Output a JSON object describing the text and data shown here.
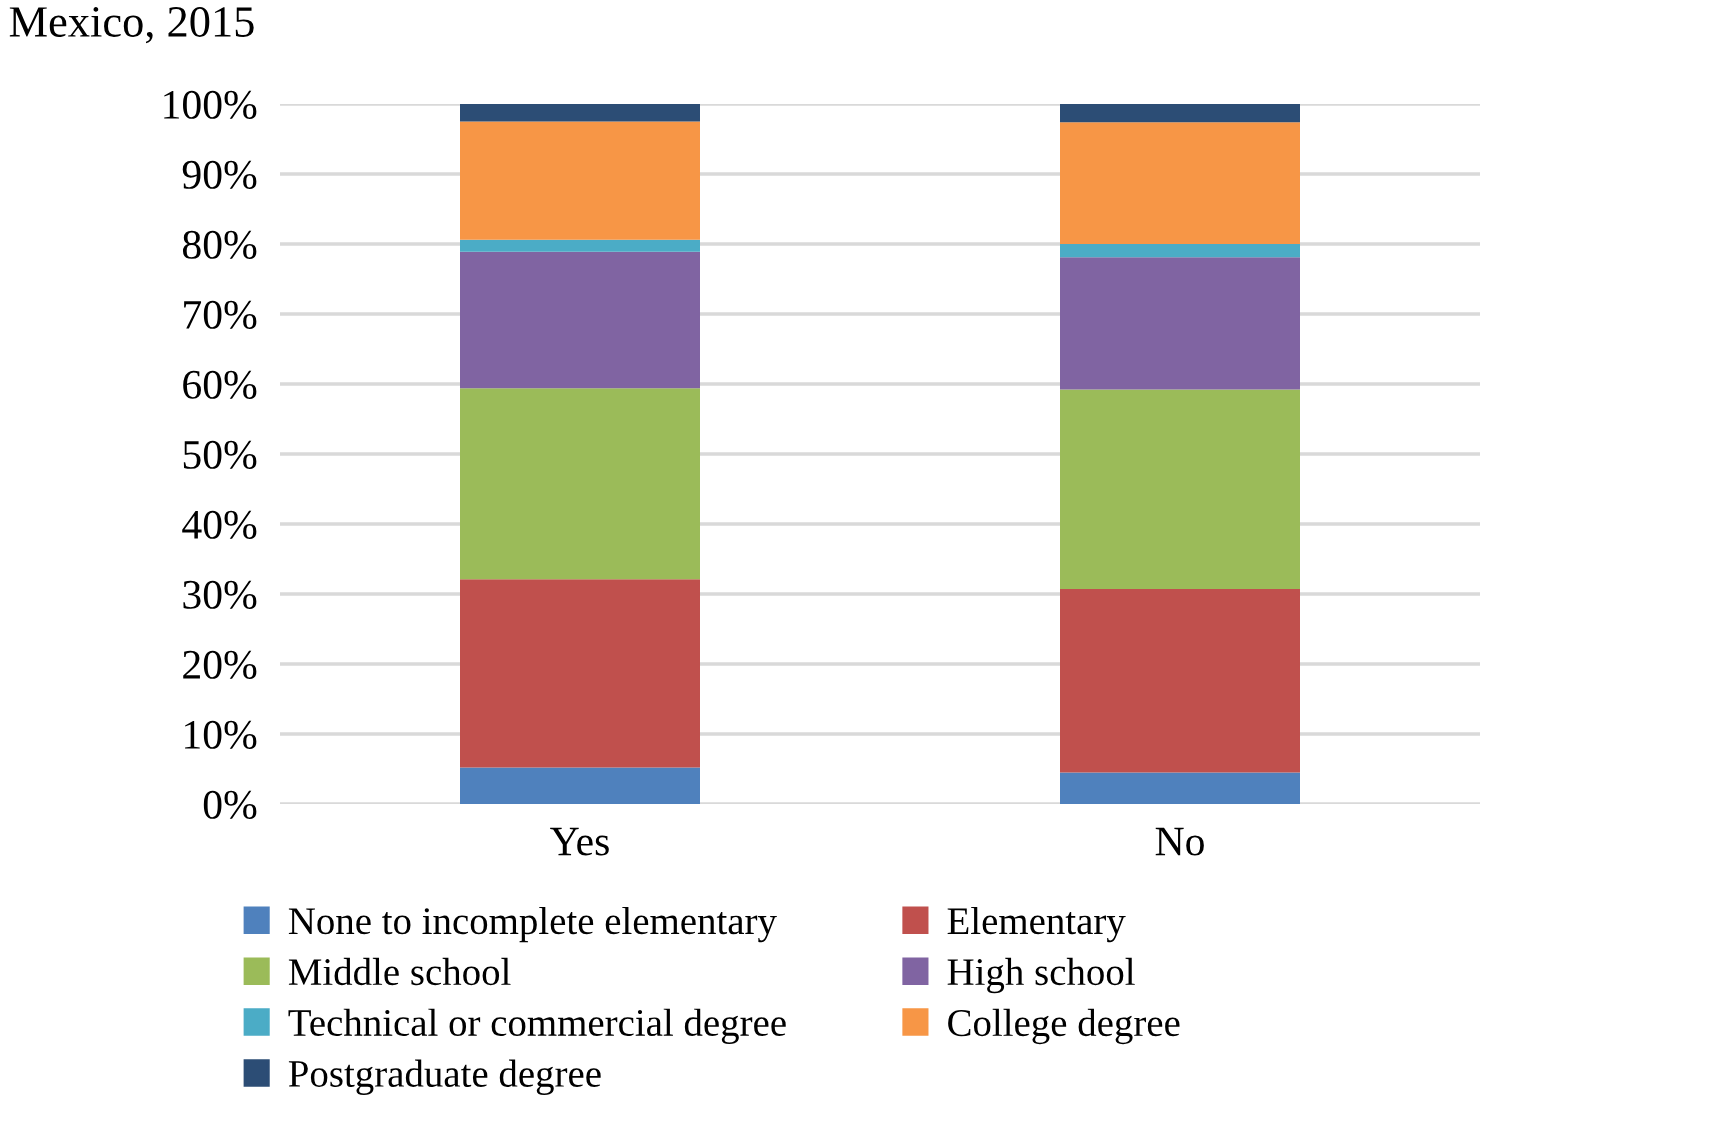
{
  "chart_data": {
    "type": "bar",
    "stacked": true,
    "title": "Mexico, 2015",
    "categories": [
      "Yes",
      "No"
    ],
    "series": [
      {
        "name": "None to incomplete elementary",
        "color": "#4f81bd",
        "values": [
          5.2,
          4.5
        ]
      },
      {
        "name": "Elementary",
        "color": "#c0504d",
        "values": [
          26.9,
          26.2
        ]
      },
      {
        "name": "Middle school",
        "color": "#9bbb59",
        "values": [
          27.3,
          28.5
        ]
      },
      {
        "name": "High school",
        "color": "#8064a2",
        "values": [
          19.5,
          18.9
        ]
      },
      {
        "name": "Technical or commercial degree",
        "color": "#4bacc6",
        "values": [
          1.7,
          1.9
        ]
      },
      {
        "name": "College degree",
        "color": "#f79646",
        "values": [
          16.9,
          17.4
        ]
      },
      {
        "name": "Postgraduate degree",
        "color": "#2c4d75",
        "values": [
          2.5,
          2.6
        ]
      }
    ],
    "ylim": [
      0,
      100
    ],
    "yticks": [
      {
        "value": 0,
        "label": "0%"
      },
      {
        "value": 10,
        "label": "10%"
      },
      {
        "value": 20,
        "label": "20%"
      },
      {
        "value": 30,
        "label": "30%"
      },
      {
        "value": 40,
        "label": "40%"
      },
      {
        "value": 50,
        "label": "50%"
      },
      {
        "value": 60,
        "label": "60%"
      },
      {
        "value": 70,
        "label": "70%"
      },
      {
        "value": 80,
        "label": "80%"
      },
      {
        "value": 90,
        "label": "90%"
      },
      {
        "value": 100,
        "label": "100%"
      }
    ],
    "grid": "y",
    "legend": "bottom"
  }
}
